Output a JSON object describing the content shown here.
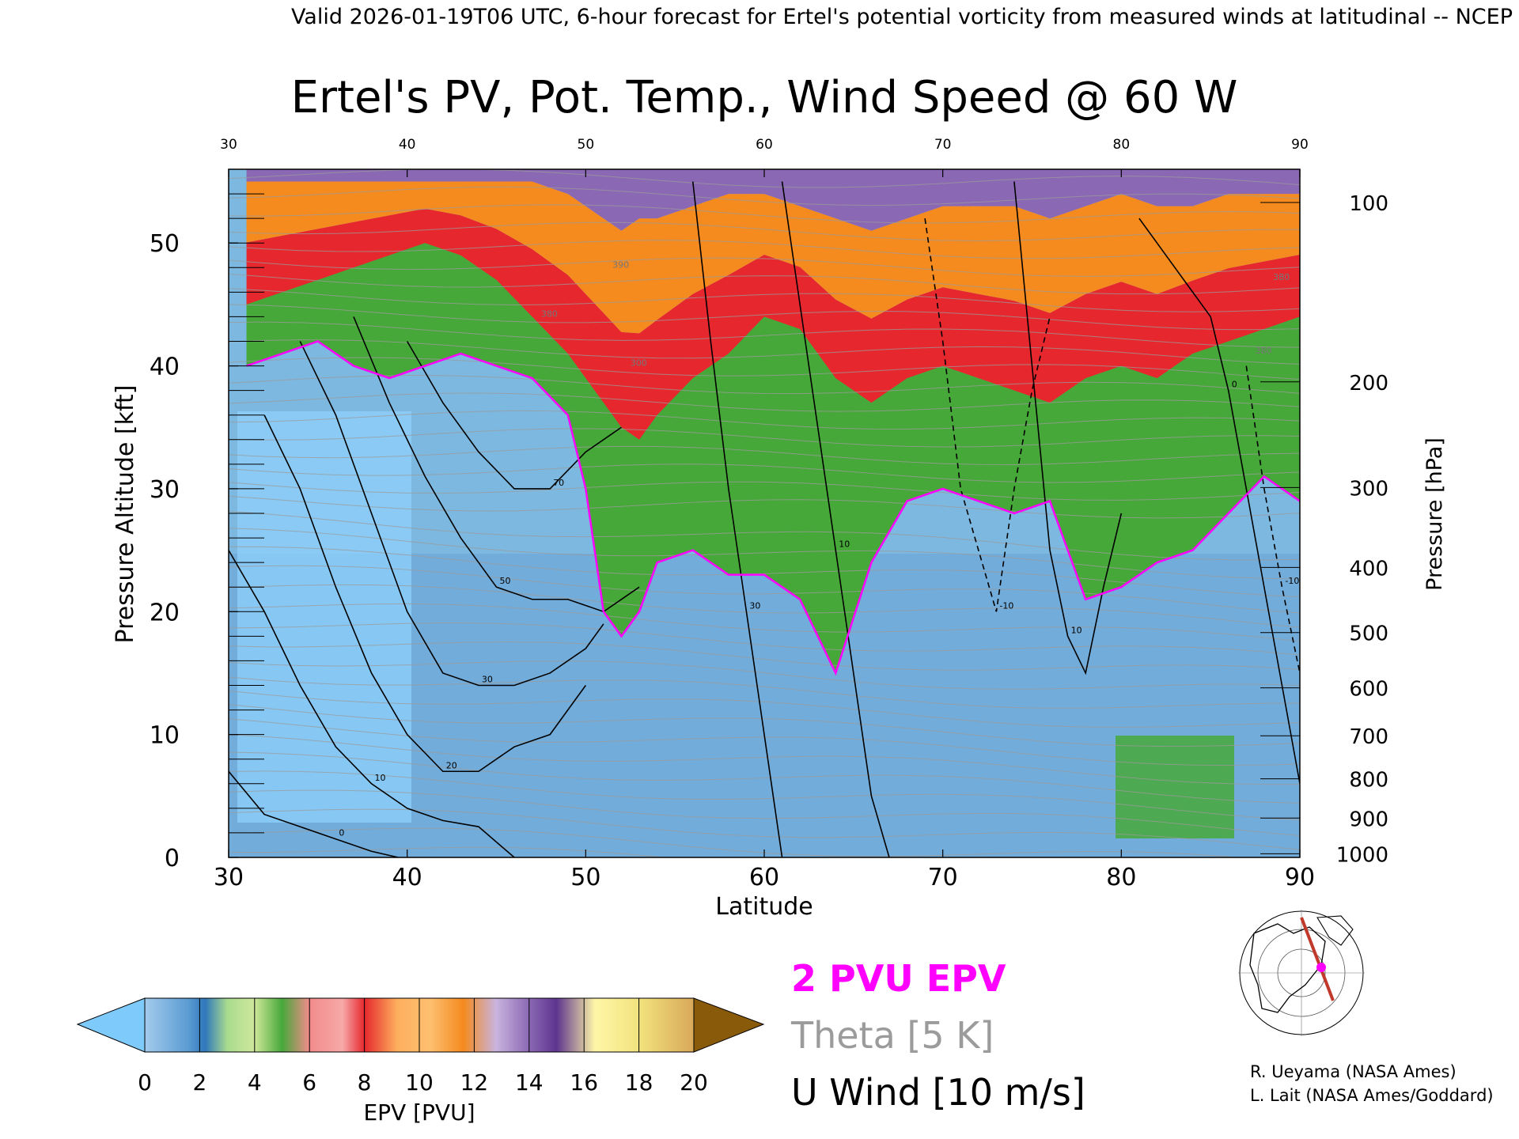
{
  "header": {
    "text": "Valid 2026-01-19T06 UTC, 6-hour forecast for Ertel's potential vorticity from measured winds at latitudinal -- NCEP"
  },
  "colors": {
    "pv_2pvu": "#ff00ff",
    "theta": "#9b9b9b",
    "u_wind": "#000000",
    "epv_scale": [
      "#7ecbfb",
      "#a3cbec",
      "#3b83c2",
      "#a9db8f",
      "#47a83a",
      "#f28b8b",
      "#e6282e",
      "#fdb05d",
      "#f58a1e",
      "#b49fd1",
      "#6c3f9a",
      "#f6ef90",
      "#8a5a0b"
    ]
  },
  "chart_data": {
    "type": "heatmap",
    "title": "Ertel's PV, Pot. Temp., Wind Speed @ 60 W",
    "xlabel": "Latitude",
    "ylabel_left": "Pressure Altitude [kft]",
    "ylabel_right": "Pressure [hPa]",
    "xlim": [
      30,
      90
    ],
    "ylim": [
      0,
      56
    ],
    "x_ticks": [
      "30",
      "40",
      "50",
      "60",
      "70",
      "80",
      "90"
    ],
    "x_ticks_top": [
      "30",
      "40",
      "50",
      "60",
      "70",
      "80",
      "90"
    ],
    "y_ticks_left": [
      "0",
      "10",
      "20",
      "30",
      "40",
      "50"
    ],
    "y_ticks_right": [
      {
        "label": "100",
        "kft": 53.3
      },
      {
        "label": "200",
        "kft": 38.7
      },
      {
        "label": "300",
        "kft": 30.1
      },
      {
        "label": "400",
        "kft": 23.6
      },
      {
        "label": "500",
        "kft": 18.3
      },
      {
        "label": "600",
        "kft": 13.8
      },
      {
        "label": "700",
        "kft": 9.9
      },
      {
        "label": "800",
        "kft": 6.4
      },
      {
        "label": "900",
        "kft": 3.2
      },
      {
        "label": "1000",
        "kft": 0.3
      }
    ],
    "colorbar": {
      "label": "EPV [PVU]",
      "ticks": [
        "0",
        "2",
        "4",
        "6",
        "8",
        "10",
        "12",
        "14",
        "16",
        "18",
        "20"
      ]
    },
    "legend": {
      "pv": "2 PVU EPV",
      "theta": "Theta [5 K]",
      "wind": "U Wind [10 m/s]"
    },
    "pv2_contour": {
      "lat": [
        31,
        33,
        35,
        37,
        39,
        41,
        43,
        45,
        47,
        49,
        50,
        51,
        52,
        53,
        54,
        56,
        58,
        60,
        62,
        64,
        66,
        68,
        70,
        72,
        74,
        76,
        78,
        80,
        82,
        84,
        86,
        88,
        90
      ],
      "kft": [
        40,
        41,
        42,
        40,
        39,
        40,
        41,
        40,
        39,
        36,
        30,
        20,
        18,
        20,
        24,
        25,
        23,
        23,
        21,
        15,
        24,
        29,
        30,
        29,
        28,
        29,
        21,
        22,
        24,
        25,
        28,
        31,
        29
      ]
    },
    "tropo_top_kft": [
      46,
      47,
      48,
      49,
      50,
      51,
      50,
      48,
      45,
      42,
      40,
      38,
      36,
      35,
      37,
      40,
      42,
      45,
      44,
      40,
      38,
      40,
      41,
      40,
      39,
      38,
      40,
      41,
      40,
      42,
      43,
      44,
      45
    ],
    "stratosphere_top_kft": [
      55,
      55,
      55,
      55,
      55,
      55,
      55,
      55,
      55,
      54,
      53,
      52,
      51,
      52,
      52,
      53,
      54,
      54,
      53,
      52,
      51,
      52,
      53,
      53,
      53,
      52,
      53,
      54,
      53,
      53,
      54,
      54,
      54
    ],
    "u_wind_contours": [
      {
        "label": "0",
        "lat": [
          30,
          32,
          34,
          36,
          37,
          38,
          39.5
        ],
        "kft": [
          7,
          3.5,
          2.5,
          1.5,
          1,
          0.5,
          0
        ]
      },
      {
        "label": "10",
        "lat": [
          30,
          32,
          34,
          36,
          38,
          40,
          42,
          44,
          46
        ],
        "kft": [
          25,
          20,
          14,
          9,
          6,
          4,
          3,
          2.5,
          0
        ]
      },
      {
        "label": "20",
        "lat": [
          32,
          34,
          36,
          38,
          40,
          42,
          44,
          46,
          48,
          50
        ],
        "kft": [
          36,
          30,
          22,
          15,
          10,
          7,
          7,
          9,
          10,
          14
        ]
      },
      {
        "label": "30",
        "lat": [
          34,
          36,
          38,
          40,
          42,
          44,
          46,
          48,
          50,
          51
        ],
        "kft": [
          42,
          36,
          28,
          20,
          15,
          14,
          14,
          15,
          17,
          19
        ]
      },
      {
        "label": "50",
        "lat": [
          37,
          39,
          41,
          43,
          45,
          47,
          49,
          51,
          53
        ],
        "kft": [
          44,
          37,
          31,
          26,
          22,
          21,
          21,
          20,
          22
        ]
      },
      {
        "label": "70",
        "lat": [
          40,
          42,
          44,
          46,
          48,
          50,
          51,
          52
        ],
        "kft": [
          42,
          37,
          33,
          30,
          30,
          33,
          34,
          35
        ]
      },
      {
        "label": "30",
        "lat": [
          56,
          57,
          58,
          59,
          60,
          61
        ],
        "kft": [
          55,
          42,
          30,
          20,
          10,
          0
        ]
      },
      {
        "label": "10",
        "lat": [
          61,
          62,
          63,
          64,
          65,
          66,
          67
        ],
        "kft": [
          55,
          45,
          35,
          25,
          15,
          5,
          0
        ]
      },
      {
        "label": "-10",
        "lat": [
          69,
          70,
          71,
          72,
          73,
          74,
          75,
          76
        ],
        "kft": [
          52,
          42,
          30,
          25,
          20,
          30,
          38,
          44
        ]
      },
      {
        "label": "10",
        "lat": [
          74,
          75,
          76,
          77,
          78,
          79,
          80
        ],
        "kft": [
          55,
          40,
          25,
          18,
          15,
          22,
          28
        ]
      },
      {
        "label": "0",
        "lat": [
          81,
          82,
          83,
          84,
          85,
          86,
          87,
          88,
          89,
          90
        ],
        "kft": [
          52,
          50,
          48,
          46,
          44,
          38,
          30,
          22,
          14,
          6
        ]
      },
      {
        "label": "-10",
        "lat": [
          87,
          88,
          89,
          90
        ],
        "kft": [
          40,
          30,
          22,
          15
        ]
      }
    ],
    "theta_contour_labels": [
      {
        "label": "390",
        "lat": 51.5,
        "kft": 48
      },
      {
        "label": "380",
        "lat": 47.5,
        "kft": 44
      },
      {
        "label": "300",
        "lat": 52.5,
        "kft": 40
      },
      {
        "label": "380",
        "lat": 87.5,
        "kft": 41
      },
      {
        "label": "380",
        "lat": 88.5,
        "kft": 47
      }
    ]
  },
  "minimap": {
    "icon": "north-america-polar-map-icon",
    "marker_color": "#ff00ff",
    "section_color": "#c0392b"
  },
  "credits": {
    "line1": "R. Ueyama (NASA Ames)",
    "line2": "L. Lait (NASA Ames/Goddard)"
  }
}
